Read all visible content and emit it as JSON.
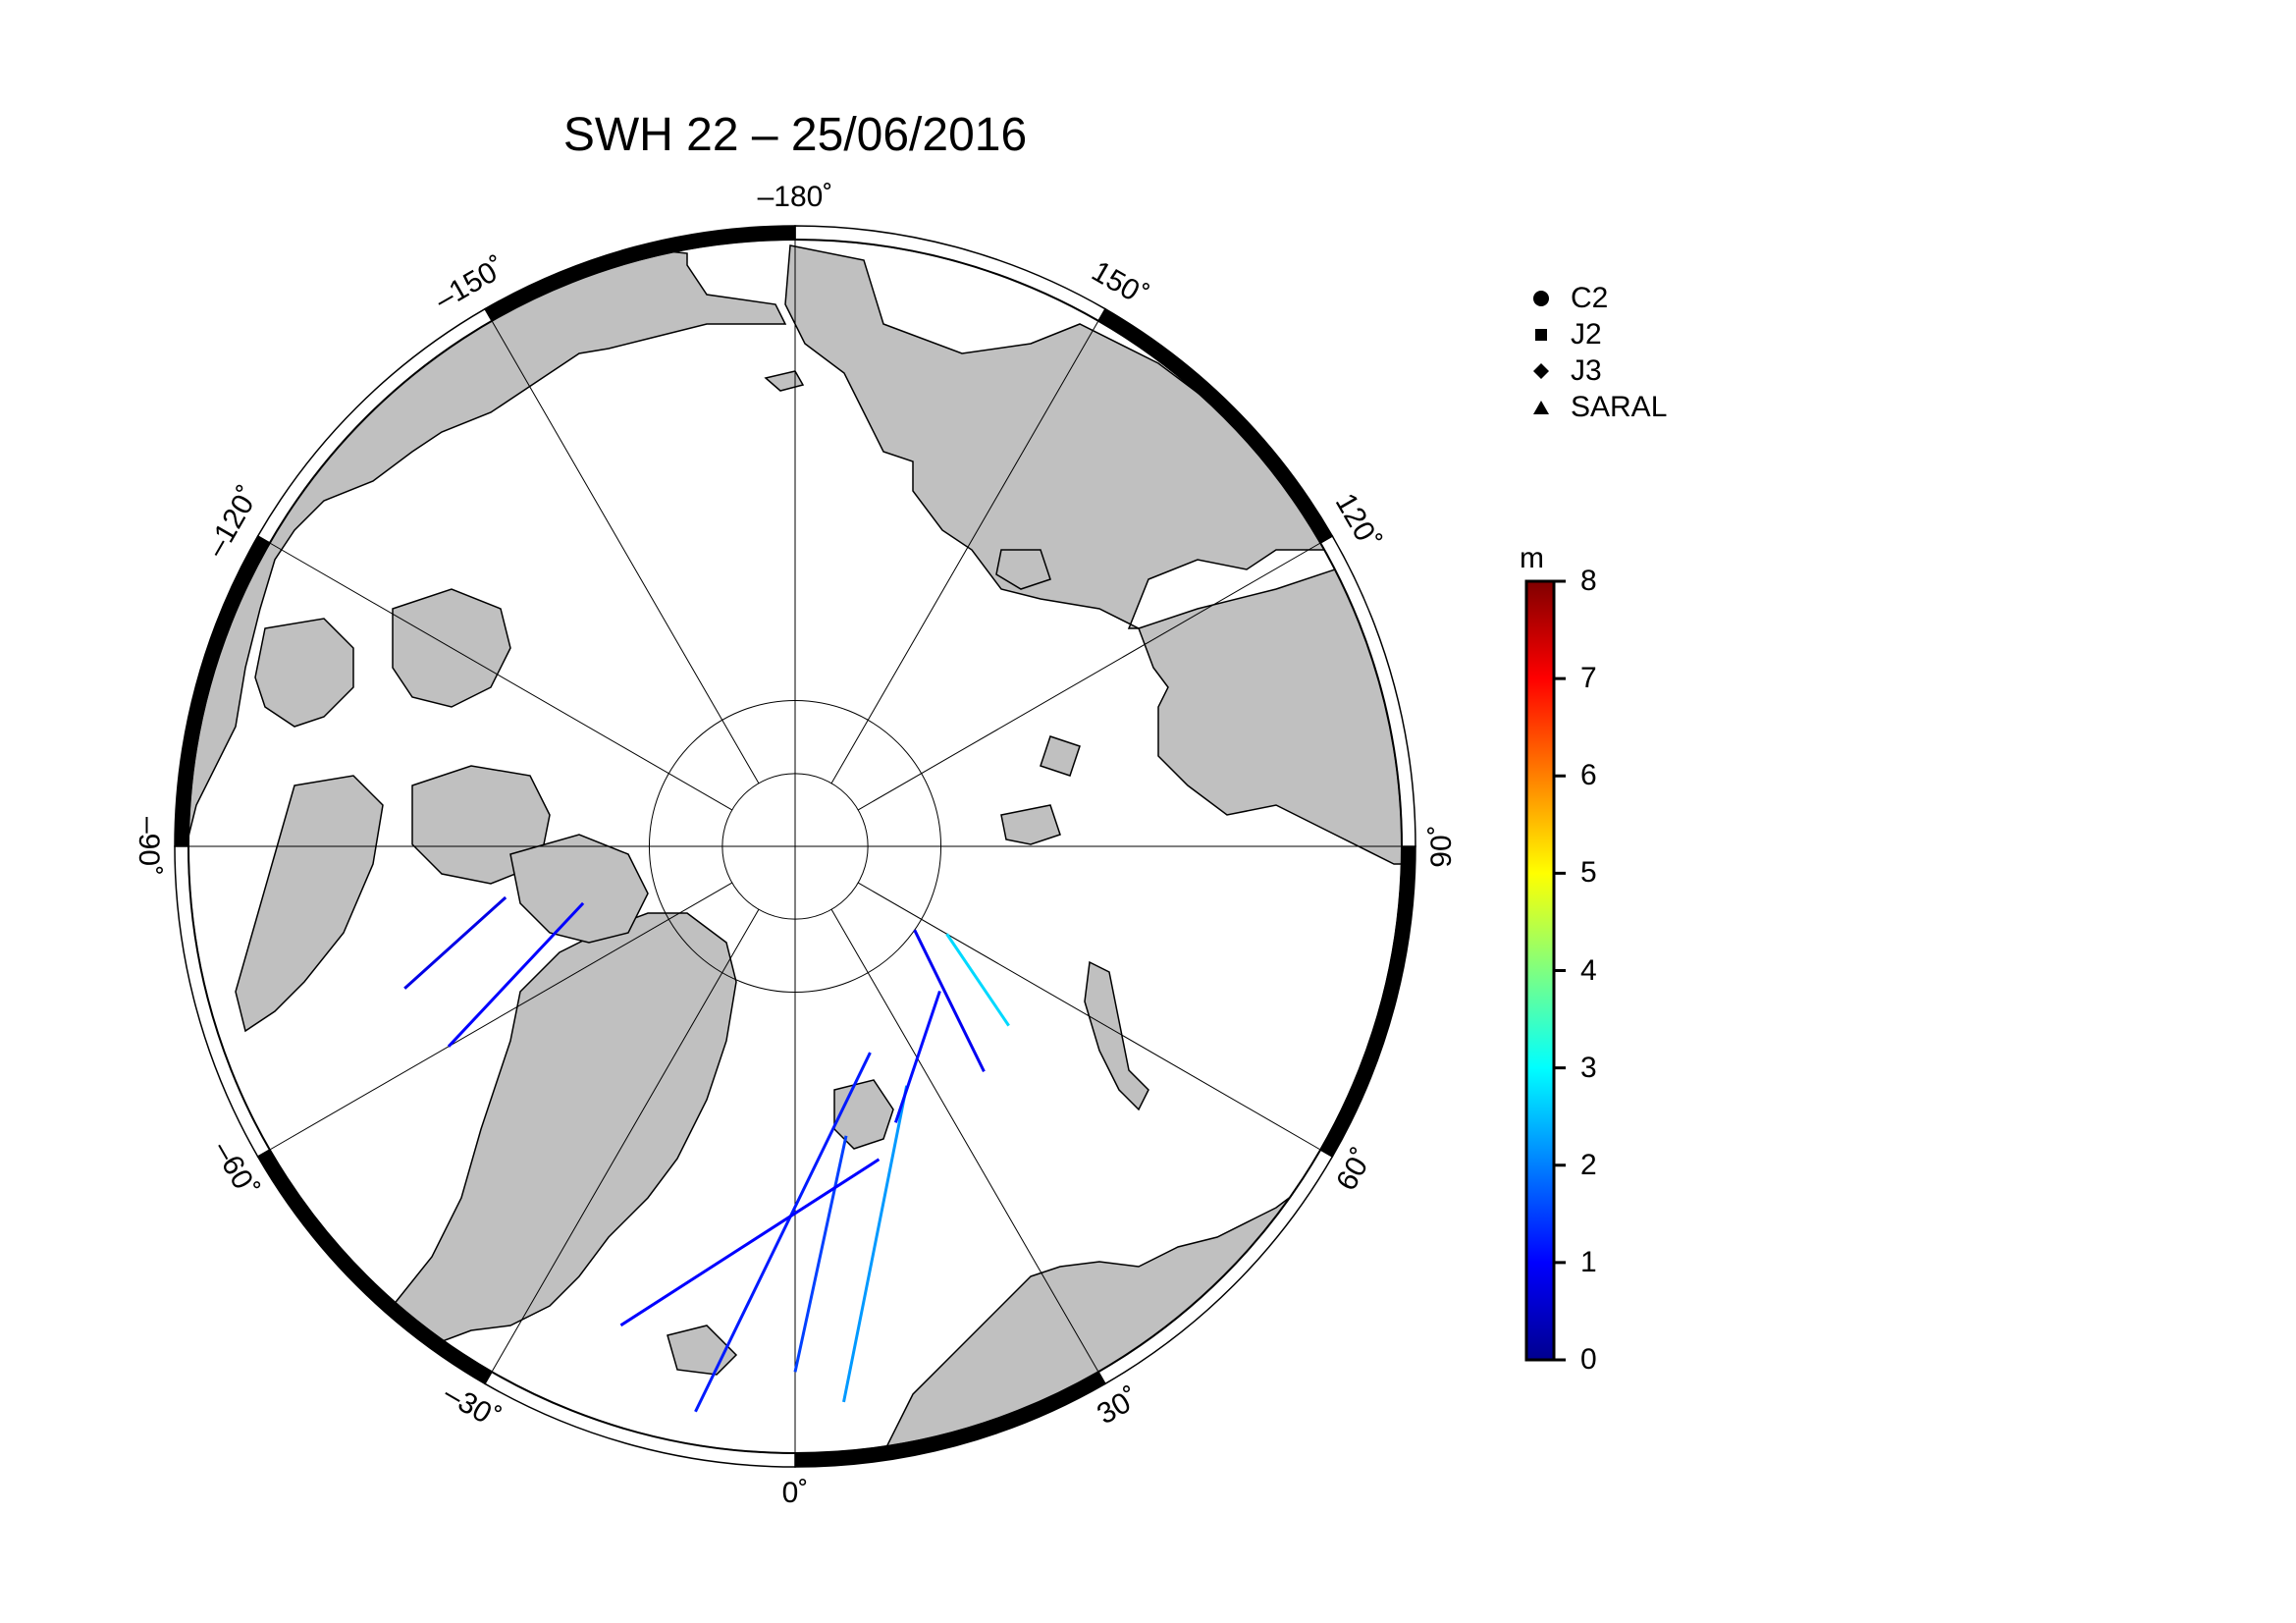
{
  "title": "SWH 22 – 25/06/2016",
  "longitude_labels": [
    {
      "text": "–180˚",
      "lon": 180
    },
    {
      "text": "150˚",
      "lon": 150
    },
    {
      "text": "120˚",
      "lon": 120
    },
    {
      "text": "90˚",
      "lon": 90
    },
    {
      "text": "60˚",
      "lon": 60
    },
    {
      "text": "30˚",
      "lon": 30
    },
    {
      "text": "0˚",
      "lon": 0
    },
    {
      "text": "–30˚",
      "lon": -30
    },
    {
      "text": "–60˚",
      "lon": -60
    },
    {
      "text": "–90˚",
      "lon": -90
    },
    {
      "text": "–120˚",
      "lon": -120
    },
    {
      "text": "–150˚",
      "lon": -150
    }
  ],
  "legend": {
    "items": [
      {
        "label": "C2",
        "symbol": "circle"
      },
      {
        "label": "J2",
        "symbol": "square"
      },
      {
        "label": "J3",
        "symbol": "diamond"
      },
      {
        "label": "SARAL",
        "symbol": "triangle"
      }
    ]
  },
  "colorbar": {
    "unit": "m",
    "min": 0,
    "max": 8,
    "ticks": [
      "0",
      "1",
      "2",
      "3",
      "4",
      "5",
      "6",
      "7",
      "8"
    ],
    "colormap": "jet"
  },
  "colors": {
    "land": "#c0c0c0",
    "ocean": "#ffffff",
    "frame_dark": "#000000",
    "grid": "#000000"
  },
  "chart_data": {
    "type": "map",
    "projection": "north polar stereographic",
    "variable": "SWH",
    "lat_circles": [
      80,
      85
    ],
    "meridians_every_deg": 30,
    "tracks_swh_m": [
      {
        "lon_start": -10,
        "lat_start": 52,
        "lon_end": 20,
        "lat_end": 75,
        "swh": 1.2
      },
      {
        "lon_start": 0,
        "lat_start": 55,
        "lon_end": 10,
        "lat_end": 70,
        "swh": 1.5
      },
      {
        "lon_start": 5,
        "lat_start": 53,
        "lon_end": 25,
        "lat_end": 72,
        "swh": 2.2
      },
      {
        "lon_start": -20,
        "lat_start": 56,
        "lon_end": 15,
        "lat_end": 68,
        "swh": 1.0
      },
      {
        "lon_start": 20,
        "lat_start": 70,
        "lon_end": 45,
        "lat_end": 76,
        "swh": 1.1
      },
      {
        "lon_start": 40,
        "lat_start": 70,
        "lon_end": 55,
        "lat_end": 80,
        "swh": 0.9
      },
      {
        "lon_start": 50,
        "lat_start": 71,
        "lon_end": 60,
        "lat_end": 78,
        "swh": 2.7
      },
      {
        "lon_start": -60,
        "lat_start": 63,
        "lon_end": -75,
        "lat_end": 75,
        "swh": 1.0
      },
      {
        "lon_start": -70,
        "lat_start": 62,
        "lon_end": -80,
        "lat_end": 70,
        "swh": 0.8
      }
    ]
  }
}
